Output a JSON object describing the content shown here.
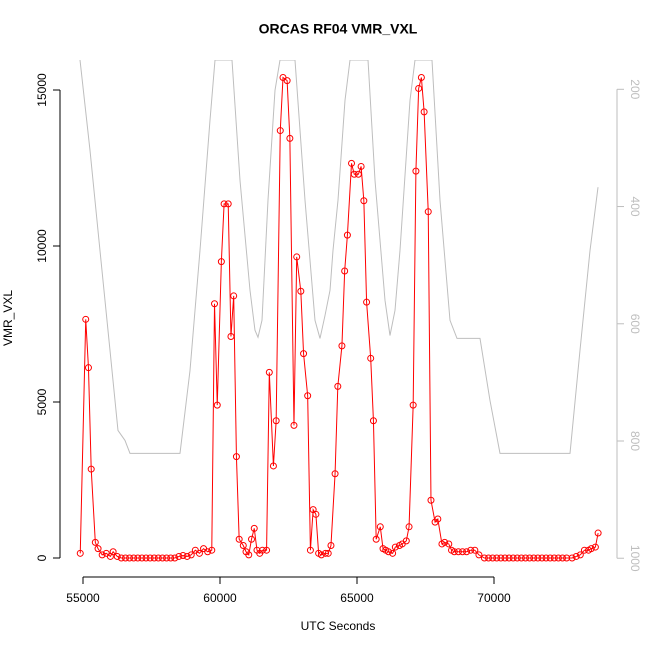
{
  "chart_data": {
    "type": "line",
    "title": "ORCAS RF04 VMR_VXL",
    "x_label": "UTC Seconds",
    "y_label": "VMR_VXL",
    "xlim": [
      54161,
      74489
    ],
    "xticks": [
      55000,
      60000,
      65000,
      70000
    ],
    "ylim": [
      -609,
      15962
    ],
    "yticks": [
      0,
      5000,
      10000,
      15000
    ],
    "y2lim": [
      1032,
      150
    ],
    "y2ticks": [
      200,
      400,
      600,
      800,
      1000
    ],
    "series": [
      {
        "color": "#bebebe",
        "axis": "y2",
        "x": [
          54891,
          55256,
          55620,
          55985,
          56277,
          56533,
          56715,
          58540,
          58905,
          59270,
          59635,
          59818,
          60438,
          60730,
          61095,
          61277,
          61387,
          61533,
          61752,
          62007,
          62190,
          62737,
          63102,
          63467,
          63650,
          63832,
          64015,
          64124,
          64307,
          64562,
          64745,
          65402,
          65657,
          66022,
          66204,
          66387,
          66569,
          66934,
          67117,
          67737,
          68029,
          68394,
          68650,
          69489,
          69854,
          70219,
          72774,
          73139,
          73504,
          73796
        ],
        "values": [
          150,
          304,
          475,
          645,
          782,
          799,
          821,
          821,
          680,
          475,
          253,
          150,
          150,
          355,
          543,
          611,
          623,
          594,
          389,
          202,
          150,
          150,
          389,
          594,
          625,
          586,
          543,
          475,
          389,
          219,
          150,
          150,
          355,
          560,
          620,
          577,
          475,
          219,
          150,
          150,
          389,
          594,
          625,
          625,
          731,
          821,
          821,
          645,
          475,
          367
        ]
      },
      {
        "color": "#ff0000",
        "x": [
          54900,
          55100,
          55200,
          55300,
          55450,
          55550,
          55700,
          55850,
          56000,
          56100,
          56250,
          56400,
          56550,
          56700,
          56850,
          57000,
          57150,
          57300,
          57450,
          57600,
          57750,
          57900,
          58050,
          58200,
          58350,
          58500,
          58650,
          58800,
          58950,
          59100,
          59250,
          59400,
          59550,
          59700,
          59800,
          59900,
          60050,
          60150,
          60300,
          60400,
          60500,
          60600,
          60700,
          60850,
          60950,
          61050,
          61150,
          61250,
          61350,
          61450,
          61550,
          61700,
          61800,
          61950,
          62050,
          62200,
          62300,
          62450,
          62550,
          62700,
          62800,
          62950,
          63050,
          63200,
          63300,
          63400,
          63500,
          63600,
          63700,
          63850,
          63950,
          64050,
          64200,
          64300,
          64450,
          64550,
          64650,
          64800,
          64900,
          65050,
          65150,
          65250,
          65350,
          65500,
          65600,
          65700,
          65850,
          65950,
          66050,
          66150,
          66300,
          66400,
          66550,
          66650,
          66800,
          66900,
          67050,
          67150,
          67250,
          67350,
          67450,
          67600,
          67700,
          67850,
          67950,
          68100,
          68200,
          68350,
          68450,
          68550,
          68700,
          68850,
          69000,
          69150,
          69300,
          69450,
          69650,
          69800,
          69950,
          70100,
          70250,
          70400,
          70550,
          70700,
          70850,
          71000,
          71150,
          71300,
          71450,
          71600,
          71750,
          71900,
          72050,
          72200,
          72350,
          72500,
          72650,
          72850,
          73000,
          73150,
          73300,
          73450,
          73550,
          73700,
          73800
        ],
        "values": [
          150,
          7650,
          6100,
          2850,
          500,
          300,
          100,
          150,
          50,
          200,
          50,
          0,
          0,
          0,
          0,
          0,
          0,
          0,
          0,
          0,
          0,
          0,
          0,
          0,
          0,
          50,
          80,
          50,
          100,
          250,
          150,
          300,
          200,
          250,
          8150,
          4900,
          9500,
          11350,
          11350,
          7100,
          8400,
          3250,
          600,
          400,
          200,
          100,
          600,
          950,
          250,
          150,
          250,
          250,
          5950,
          2950,
          4400,
          13700,
          15400,
          15300,
          13450,
          4250,
          9650,
          8550,
          6550,
          5200,
          250,
          1550,
          1400,
          150,
          100,
          150,
          150,
          400,
          2700,
          5500,
          6800,
          9200,
          10350,
          12650,
          12300,
          12300,
          12550,
          11450,
          8200,
          6400,
          4400,
          600,
          1000,
          300,
          250,
          200,
          150,
          350,
          400,
          450,
          550,
          1000,
          4900,
          12400,
          15050,
          15400,
          14300,
          11100,
          1850,
          1150,
          1250,
          450,
          500,
          450,
          250,
          200,
          200,
          200,
          200,
          250,
          250,
          100,
          0,
          0,
          0,
          0,
          0,
          0,
          0,
          0,
          0,
          0,
          0,
          0,
          0,
          0,
          0,
          0,
          0,
          0,
          0,
          0,
          0,
          0,
          50,
          100,
          250,
          250,
          300,
          350,
          800
        ]
      }
    ]
  }
}
